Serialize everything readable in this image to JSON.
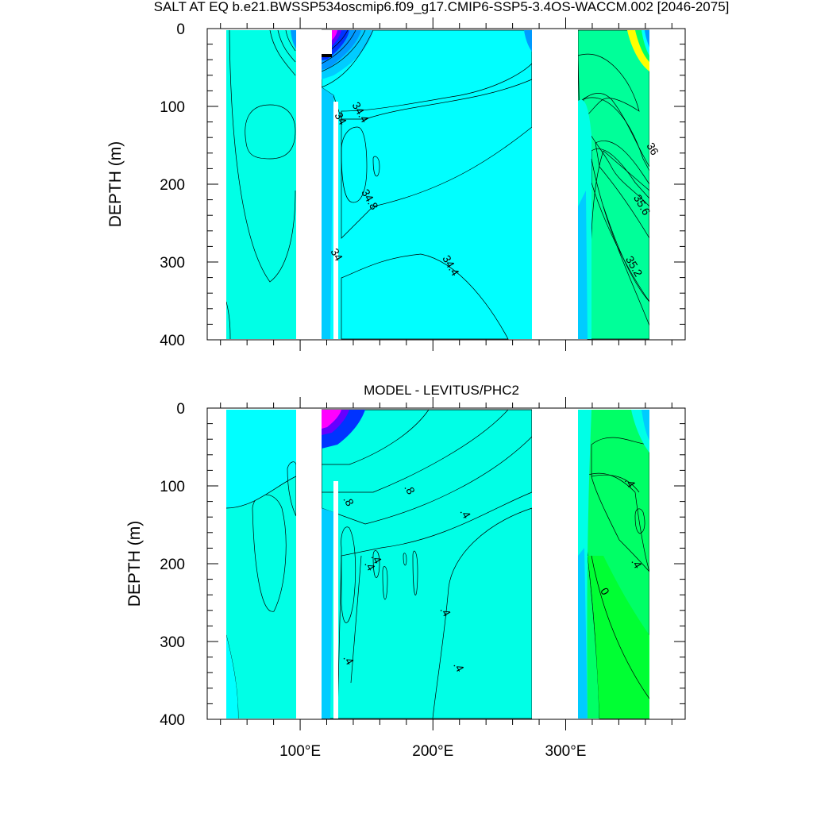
{
  "chart_data": [
    {
      "type": "heatmap",
      "title": "SALT AT EQ b.e21.BWSSP534oscmip6.f09_g17.CMIP6-SSP5-3.4OS-WACCM.002 [2046-2075]",
      "ylabel": "DEPTH (m)",
      "xlabel": "",
      "xlim": [
        30,
        390
      ],
      "ylim": [
        400,
        0
      ],
      "x_ticks": [
        100,
        200,
        300
      ],
      "x_tick_labels": [
        "100°E",
        "200°E",
        "300°E"
      ],
      "y_ticks": [
        0,
        100,
        200,
        300,
        400
      ],
      "y_tick_labels": [
        "0",
        "100",
        "200",
        "300",
        "400"
      ],
      "land_masks": [
        [
          98,
          118
        ],
        [
          280,
          315
        ]
      ],
      "contour_labels": [
        {
          "text": "34",
          "lon": 128,
          "depth": 118
        },
        {
          "text": "34.4",
          "lon": 143,
          "depth": 110
        },
        {
          "text": "34.8",
          "lon": 150,
          "depth": 222
        },
        {
          "text": "34",
          "lon": 125,
          "depth": 293
        },
        {
          "text": "34.4",
          "lon": 211,
          "depth": 307
        },
        {
          "text": "36",
          "lon": 363,
          "depth": 157
        },
        {
          "text": "35.6",
          "lon": 355,
          "depth": 229
        },
        {
          "text": "35.2",
          "lon": 349,
          "depth": 308
        }
      ]
    },
    {
      "type": "heatmap",
      "title": "MODEL - LEVITUS/PHC2",
      "ylabel": "DEPTH (m)",
      "xlabel": "",
      "xlim": [
        30,
        390
      ],
      "ylim": [
        400,
        0
      ],
      "x_ticks": [
        100,
        200,
        300
      ],
      "x_tick_labels": [
        "100°E",
        "200°E",
        "300°E"
      ],
      "y_ticks": [
        0,
        100,
        200,
        300,
        400
      ],
      "y_tick_labels": [
        "0",
        "100",
        "200",
        "300",
        "400"
      ],
      "land_masks": [
        [
          98,
          118
        ],
        [
          280,
          315
        ]
      ],
      "contour_labels": [
        {
          "text": ".8",
          "lon": 134,
          "depth": 122
        },
        {
          "text": ".8",
          "lon": 180,
          "depth": 107
        },
        {
          "text": ".4",
          "lon": 222,
          "depth": 138
        },
        {
          "text": ".4",
          "lon": 346,
          "depth": 98
        },
        {
          "text": ".4",
          "lon": 155,
          "depth": 196
        },
        {
          "text": ".4",
          "lon": 150,
          "depth": 205
        },
        {
          "text": ".4",
          "lon": 351,
          "depth": 202
        },
        {
          "text": "0",
          "lon": 327,
          "depth": 238
        },
        {
          "text": ".4",
          "lon": 207,
          "depth": 264
        },
        {
          "text": ".4",
          "lon": 134,
          "depth": 326
        },
        {
          "text": ".4",
          "lon": 217,
          "depth": 335
        }
      ]
    }
  ],
  "colors": {
    "aqua_dark": "#00ccd6",
    "aqua": "#00ffe6",
    "cyan": "#00ffff",
    "light_blue": "#33e6ff",
    "sky": "#00ccff",
    "blue": "#0099ff",
    "deep_blue": "#0033ff",
    "purple": "#6600ff",
    "magenta": "#ff00ff",
    "green_light": "#00ff99",
    "green": "#00ff66",
    "green_bright": "#00ff33",
    "lime": "#66ff33",
    "yellow_green": "#99ff00",
    "yellow": "#ffff00",
    "gold": "#ffcc33",
    "orange": "#ff9933",
    "land": "#ffffff"
  }
}
